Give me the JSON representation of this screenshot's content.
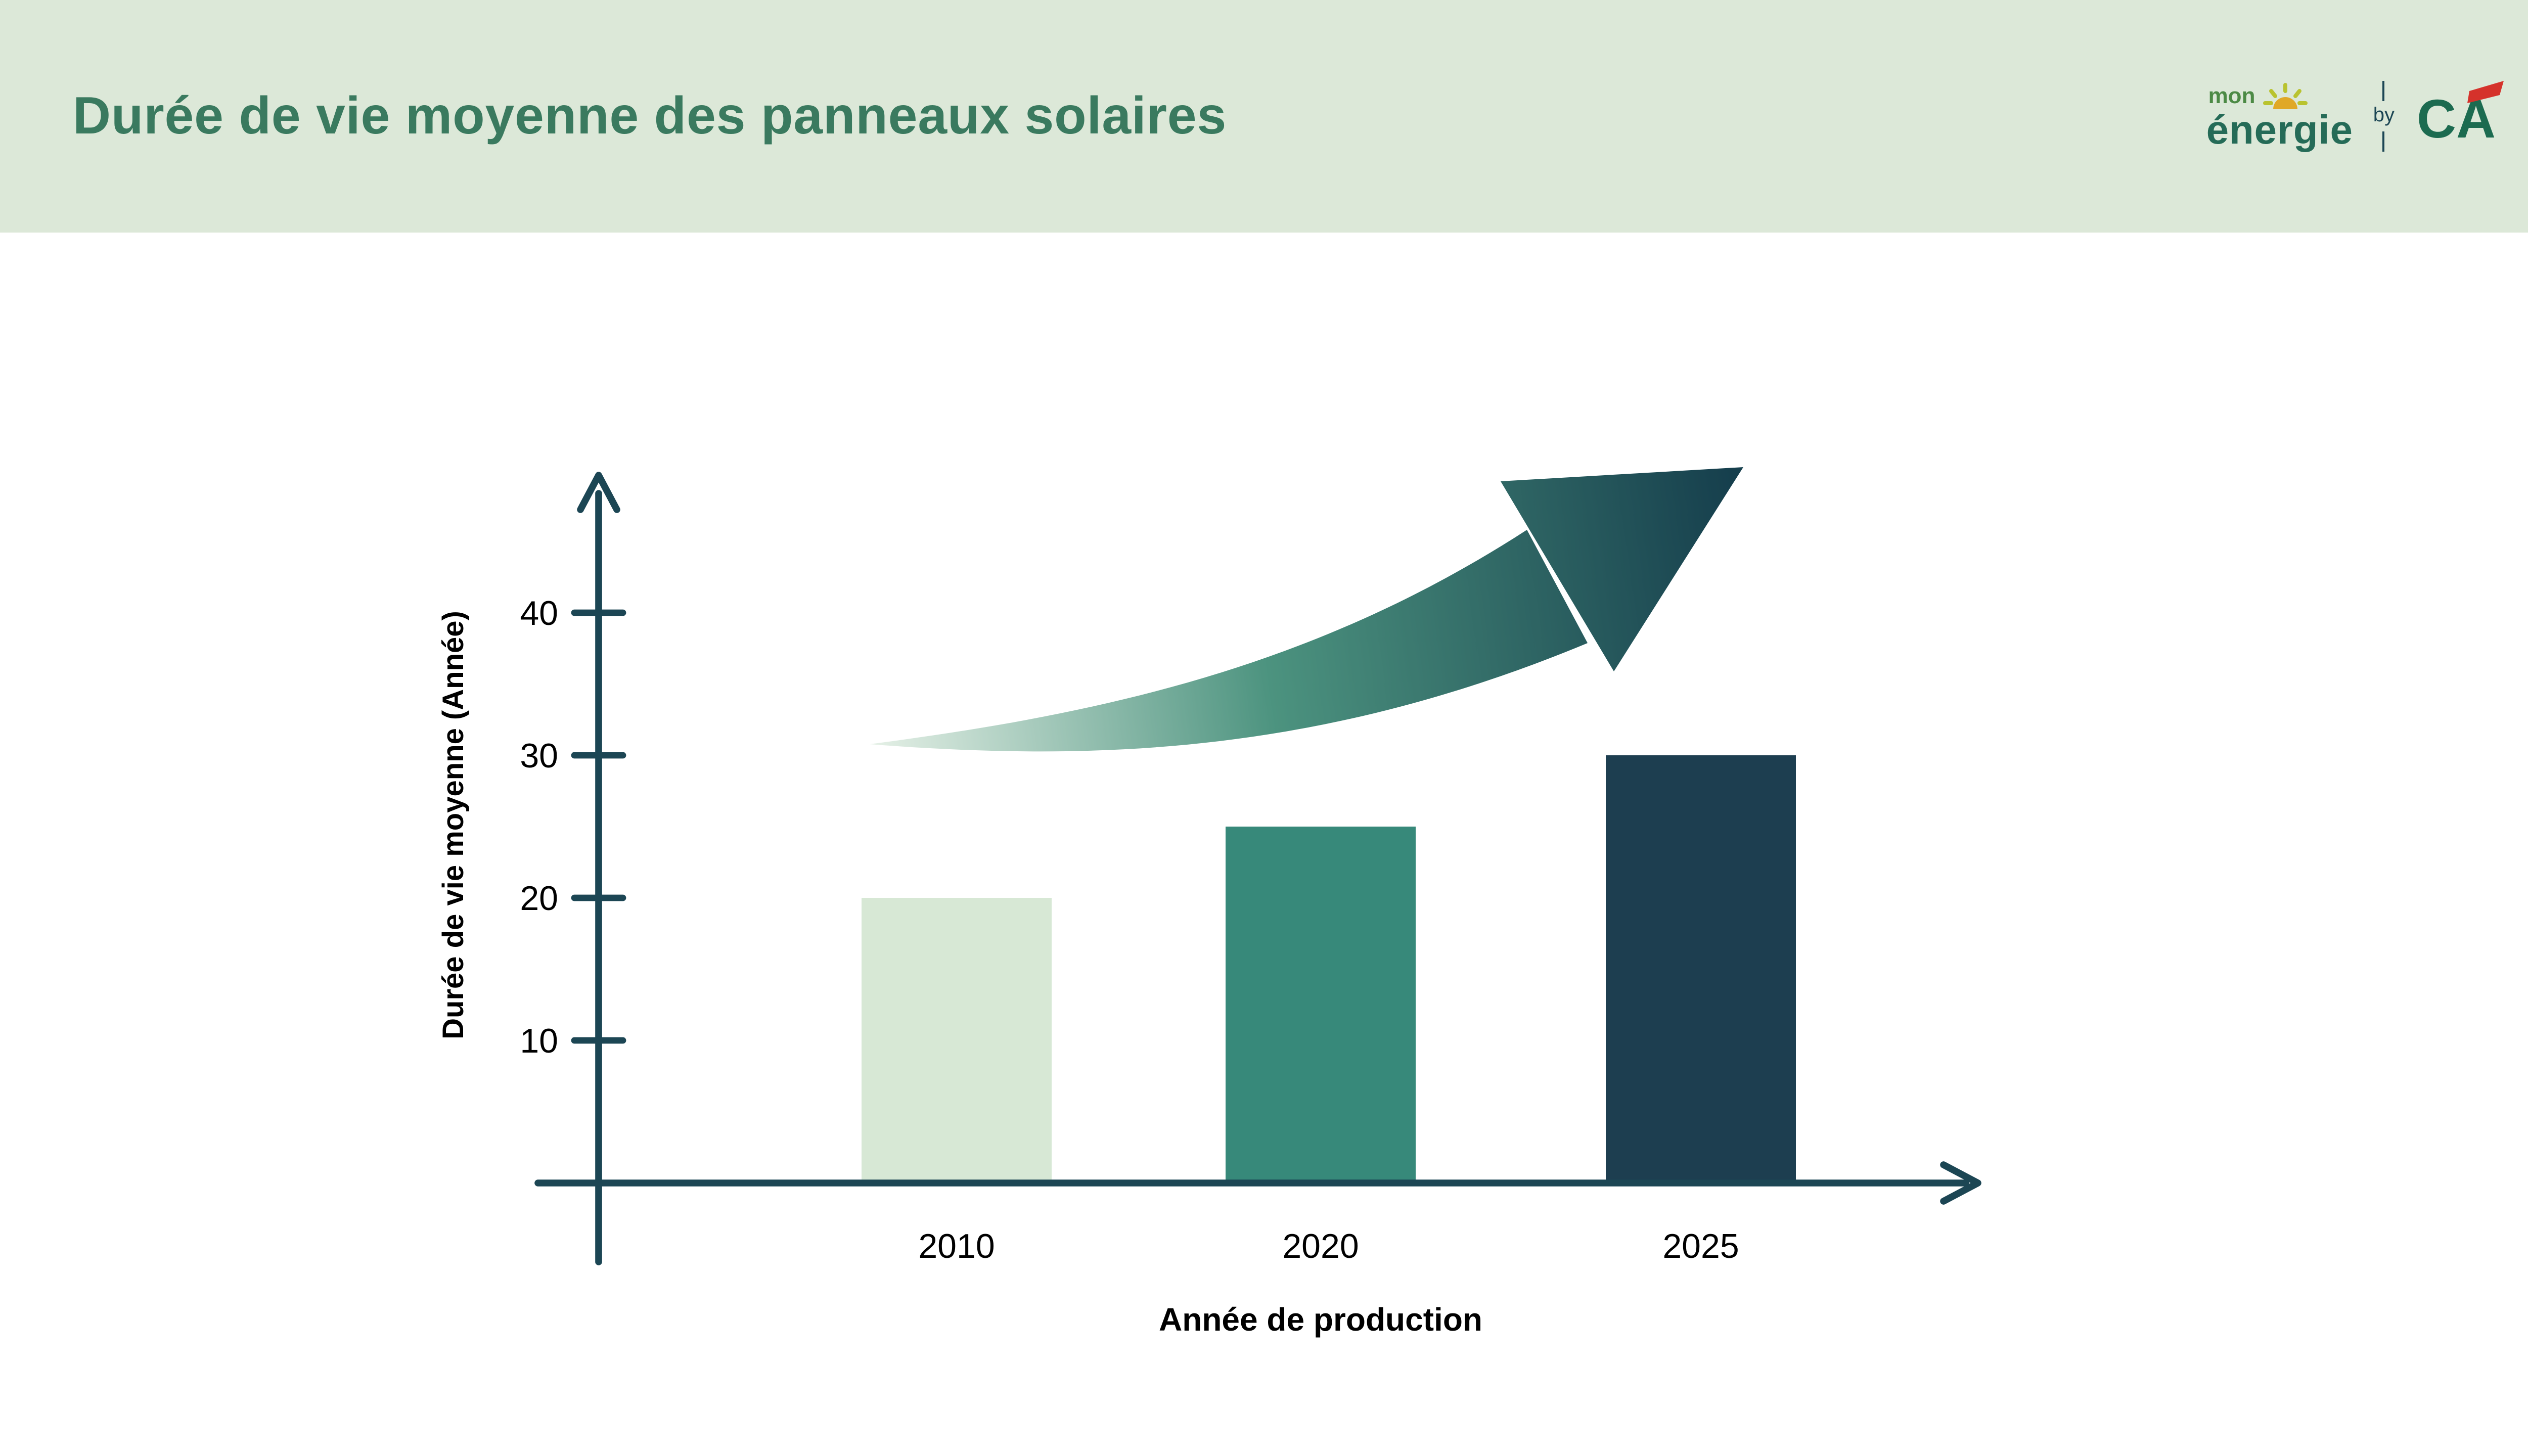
{
  "header": {
    "title": "Durée de vie moyenne des panneaux solaires",
    "logo": {
      "mon": "mon",
      "energie": "énergie",
      "by": "by",
      "ca": "CA"
    }
  },
  "chart_data": {
    "type": "bar",
    "title": "Durée de vie moyenne des panneaux solaires",
    "categories": [
      "2010",
      "2020",
      "2025"
    ],
    "values": [
      20,
      25,
      30
    ],
    "xlabel": "Année de production",
    "ylabel": "Durée de vie moyenne (Année)",
    "yticks": [
      10,
      20,
      30,
      40
    ],
    "ylim": [
      0,
      45
    ],
    "grid": false,
    "legend": false,
    "bar_colors": [
      "#d7e8d5",
      "#37897a",
      "#1d3e50"
    ],
    "axis_color": "#1c4654",
    "text_color": "#000000",
    "arrow_gradient": [
      "#e3efe5",
      "#4c937f",
      "#163f4d"
    ],
    "annotation": "upward curved trend arrow above bars"
  }
}
